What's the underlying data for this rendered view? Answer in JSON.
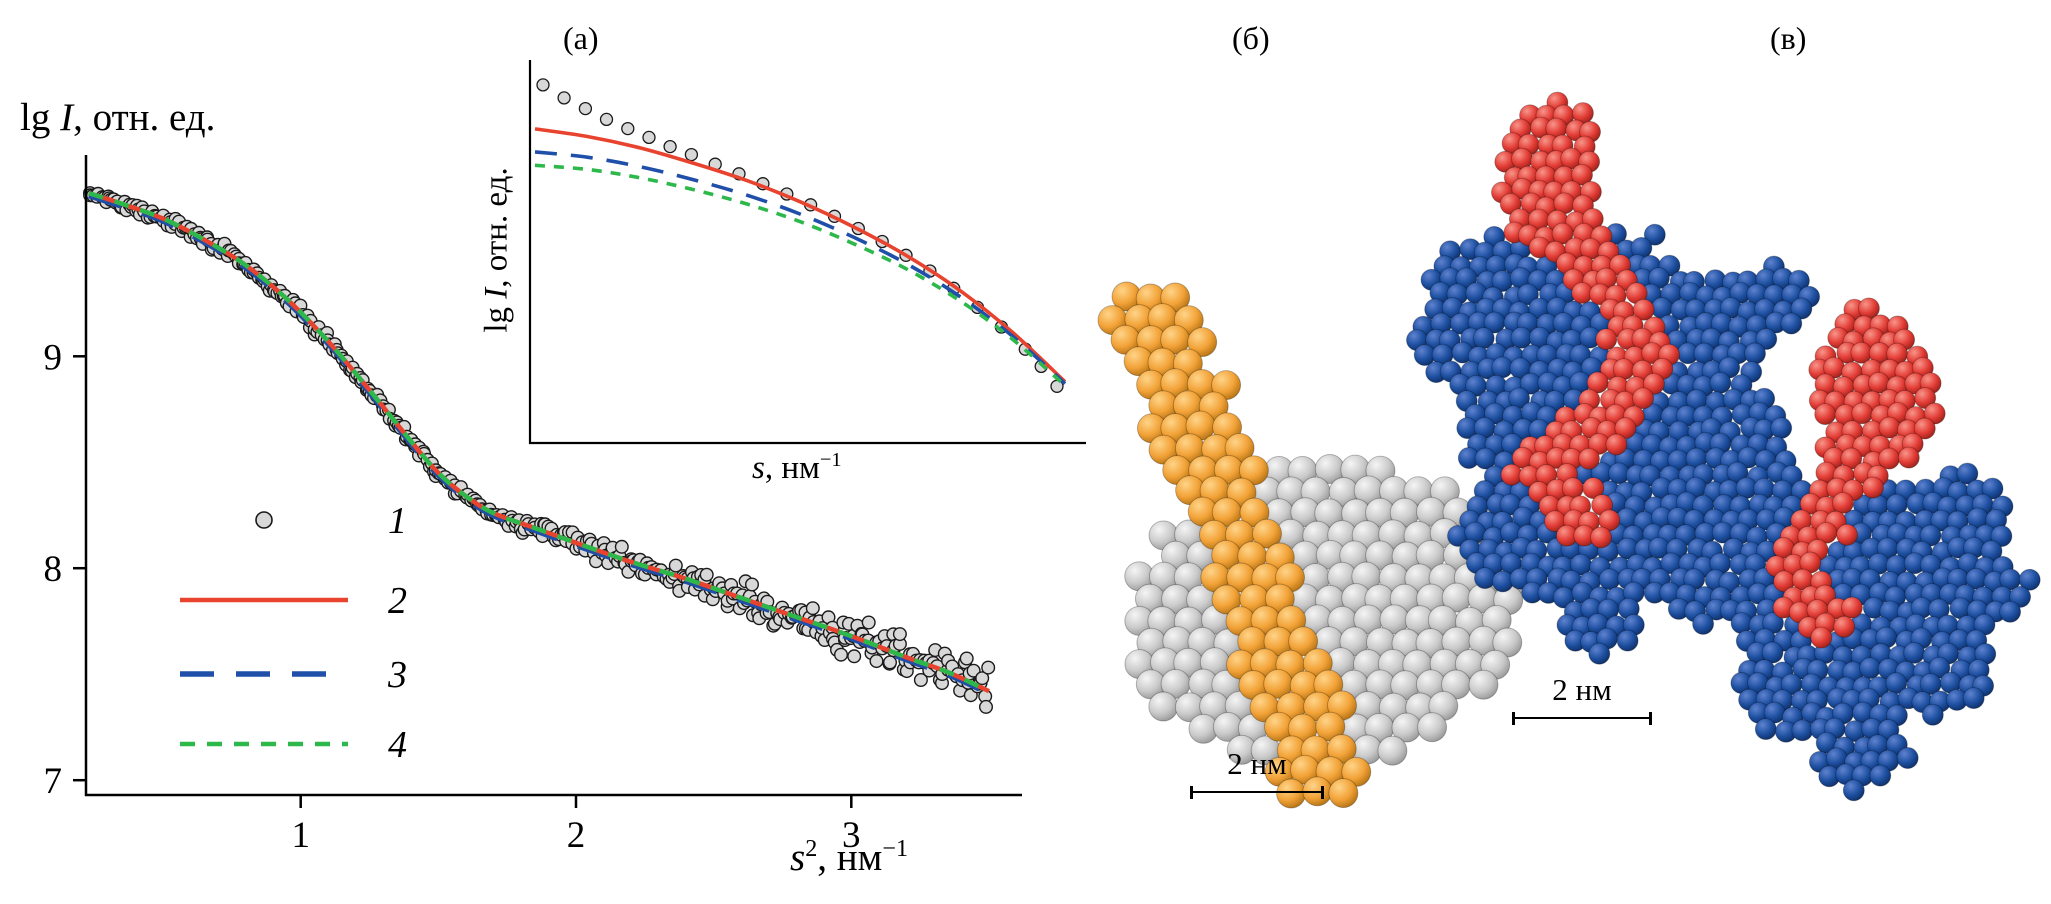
{
  "panels": {
    "a": "(а)",
    "b": "(б)",
    "v": "(в)"
  },
  "scalebars": {
    "b": "2 нм",
    "v": "2 нм"
  },
  "colors": {
    "marker_fill": "#d8d8d8",
    "marker_edge": "#1a1a1a",
    "line_solid": "#e8432e",
    "line_longdash": "#1f4fa8",
    "line_shortdash": "#2db84b",
    "bead_gray": "#c9c9c9",
    "bead_orange": "#f2a237",
    "bead_blue": "#1d4fa0",
    "bead_red": "#e23b34",
    "axis": "#000000"
  },
  "chart_data": [
    {
      "id": "main",
      "type": "scatter",
      "title": "",
      "ylabel_parts": {
        "prefix": "lg ",
        "var": "I",
        "rest": ", отн. ед."
      },
      "xlabel_parts": {
        "var": "s",
        "sup": "2",
        "rest": ", нм",
        "sup2": "−1"
      },
      "xlim": [
        0.22,
        3.62
      ],
      "ylim": [
        6.93,
        9.95
      ],
      "xticks": [
        "1",
        "2",
        "3"
      ],
      "yticks": [
        "7",
        "8",
        "9"
      ],
      "grid": false,
      "legend_position": "lower-left-inside",
      "legend": [
        {
          "label": "1",
          "style": "marker"
        },
        {
          "label": "2",
          "style": "solid"
        },
        {
          "label": "3",
          "style": "longdash"
        },
        {
          "label": "4",
          "style": "shortdash"
        }
      ],
      "fit_curve": [
        [
          0.23,
          9.77
        ],
        [
          0.35,
          9.72
        ],
        [
          0.5,
          9.65
        ],
        [
          0.65,
          9.55
        ],
        [
          0.8,
          9.43
        ],
        [
          0.95,
          9.27
        ],
        [
          1.1,
          9.07
        ],
        [
          1.25,
          8.84
        ],
        [
          1.4,
          8.6
        ],
        [
          1.5,
          8.45
        ],
        [
          1.6,
          8.34
        ],
        [
          1.7,
          8.26
        ],
        [
          1.85,
          8.19
        ],
        [
          2.0,
          8.12
        ],
        [
          2.2,
          8.03
        ],
        [
          2.4,
          7.95
        ],
        [
          2.6,
          7.86
        ],
        [
          2.8,
          7.77
        ],
        [
          3.0,
          7.68
        ],
        [
          3.2,
          7.58
        ],
        [
          3.35,
          7.51
        ],
        [
          3.5,
          7.42
        ]
      ],
      "scatter_noise_sigma": [
        0.013,
        0.06
      ],
      "scatter_n": 430
    },
    {
      "id": "inset",
      "type": "scatter",
      "title": "",
      "ylabel_parts": {
        "prefix": "lg ",
        "var": "I",
        "rest": ", отн. ед."
      },
      "xlabel_parts": {
        "var": "s",
        "rest": ", нм",
        "sup2": "−1"
      },
      "xlim": [
        0,
        1
      ],
      "ylim": [
        0,
        1
      ],
      "grid": false,
      "series": [
        {
          "name": "2",
          "style": "solid",
          "points": [
            [
              0,
              0.82
            ],
            [
              0.1,
              0.8
            ],
            [
              0.2,
              0.77
            ],
            [
              0.3,
              0.73
            ],
            [
              0.4,
              0.685
            ],
            [
              0.5,
              0.63
            ],
            [
              0.6,
              0.565
            ],
            [
              0.7,
              0.49
            ],
            [
              0.8,
              0.4
            ],
            [
              0.9,
              0.29
            ],
            [
              1,
              0.16
            ]
          ]
        },
        {
          "name": "3",
          "style": "longdash",
          "points": [
            [
              0,
              0.76
            ],
            [
              0.1,
              0.746
            ],
            [
              0.2,
              0.721
            ],
            [
              0.3,
              0.687
            ],
            [
              0.4,
              0.647
            ],
            [
              0.5,
              0.598
            ],
            [
              0.6,
              0.538
            ],
            [
              0.7,
              0.469
            ],
            [
              0.8,
              0.384
            ],
            [
              0.9,
              0.28
            ],
            [
              1,
              0.155
            ]
          ]
        },
        {
          "name": "4",
          "style": "shortdash",
          "points": [
            [
              0,
              0.725
            ],
            [
              0.1,
              0.714
            ],
            [
              0.2,
              0.692
            ],
            [
              0.3,
              0.661
            ],
            [
              0.4,
              0.624
            ],
            [
              0.5,
              0.578
            ],
            [
              0.6,
              0.521
            ],
            [
              0.7,
              0.455
            ],
            [
              0.8,
              0.373
            ],
            [
              0.9,
              0.272
            ],
            [
              1,
              0.15
            ]
          ]
        }
      ],
      "scatter": [
        [
          0.015,
          0.935
        ],
        [
          0.055,
          0.901
        ],
        [
          0.095,
          0.873
        ],
        [
          0.135,
          0.845
        ],
        [
          0.175,
          0.821
        ],
        [
          0.215,
          0.798
        ],
        [
          0.255,
          0.774
        ],
        [
          0.295,
          0.753
        ],
        [
          0.34,
          0.728
        ],
        [
          0.385,
          0.703
        ],
        [
          0.43,
          0.677
        ],
        [
          0.475,
          0.65
        ],
        [
          0.52,
          0.622
        ],
        [
          0.565,
          0.592
        ],
        [
          0.61,
          0.56
        ],
        [
          0.655,
          0.526
        ],
        [
          0.7,
          0.49
        ],
        [
          0.745,
          0.449
        ],
        [
          0.79,
          0.404
        ],
        [
          0.835,
          0.354
        ],
        [
          0.88,
          0.303
        ],
        [
          0.925,
          0.245
        ],
        [
          0.955,
          0.2
        ],
        [
          0.985,
          0.148
        ]
      ]
    }
  ]
}
